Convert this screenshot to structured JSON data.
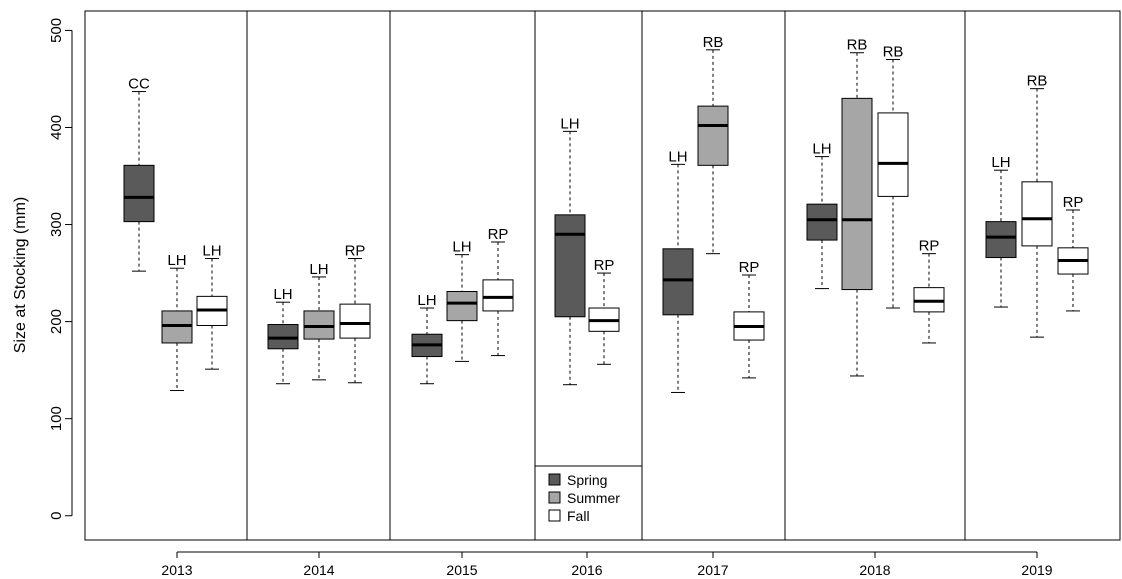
{
  "chart_data": {
    "type": "boxplot",
    "ylabel": "Size at Stocking (mm)",
    "ylim": [
      -25,
      520
    ],
    "y_ticks": [
      0,
      100,
      200,
      300,
      400,
      500
    ],
    "years": [
      "2013",
      "2014",
      "2015",
      "2016",
      "2017",
      "2018",
      "2019"
    ],
    "legend": {
      "placement": "inside-2016-panel-bottom",
      "entries": [
        {
          "name": "Spring",
          "color": "#5a5a5a"
        },
        {
          "name": "Summer",
          "color": "#a6a6a6"
        },
        {
          "name": "Fall",
          "color": "#ffffff"
        }
      ]
    },
    "boxes": [
      {
        "year": "2013",
        "season": "Spring",
        "min": 252,
        "q1": 303,
        "median": 328,
        "q3": 361,
        "max": 437,
        "label": "CC"
      },
      {
        "year": "2013",
        "season": "Summer",
        "min": 129,
        "q1": 178,
        "median": 196,
        "q3": 211,
        "max": 255,
        "label": "LH"
      },
      {
        "year": "2013",
        "season": "Fall",
        "min": 151,
        "q1": 196,
        "median": 212,
        "q3": 226,
        "max": 265,
        "label": "LH"
      },
      {
        "year": "2014",
        "season": "Spring",
        "min": 136,
        "q1": 172,
        "median": 183,
        "q3": 197,
        "max": 220,
        "label": "LH"
      },
      {
        "year": "2014",
        "season": "Summer",
        "min": 140,
        "q1": 182,
        "median": 195,
        "q3": 211,
        "max": 246,
        "label": "LH"
      },
      {
        "year": "2014",
        "season": "Fall",
        "min": 137,
        "q1": 183,
        "median": 198,
        "q3": 218,
        "max": 265,
        "label": "RP"
      },
      {
        "year": "2015",
        "season": "Spring",
        "min": 136,
        "q1": 164,
        "median": 176,
        "q3": 187,
        "max": 214,
        "label": "LH"
      },
      {
        "year": "2015",
        "season": "Summer",
        "min": 159,
        "q1": 201,
        "median": 219,
        "q3": 231,
        "max": 269,
        "label": "LH"
      },
      {
        "year": "2015",
        "season": "Fall",
        "min": 165,
        "q1": 211,
        "median": 225,
        "q3": 243,
        "max": 282,
        "label": "RP"
      },
      {
        "year": "2016",
        "season": "Spring",
        "min": 135,
        "q1": 205,
        "median": 290,
        "q3": 310,
        "max": 396,
        "label": "LH"
      },
      {
        "year": "2016",
        "season": "Fall",
        "min": 156,
        "q1": 190,
        "median": 201,
        "q3": 214,
        "max": 250,
        "label": "RP"
      },
      {
        "year": "2017",
        "season": "Spring",
        "min": 127,
        "q1": 207,
        "median": 243,
        "q3": 275,
        "max": 362,
        "label": "LH"
      },
      {
        "year": "2017",
        "season": "Summer",
        "min": 270,
        "q1": 361,
        "median": 402,
        "q3": 422,
        "max": 480,
        "label": "RB"
      },
      {
        "year": "2017",
        "season": "Fall",
        "min": 142,
        "q1": 181,
        "median": 195,
        "q3": 210,
        "max": 248,
        "label": "RP"
      },
      {
        "year": "2018",
        "season": "Spring",
        "min": 234,
        "q1": 284,
        "median": 305,
        "q3": 321,
        "max": 370,
        "label": "LH"
      },
      {
        "year": "2018",
        "season": "Summer",
        "min": 144,
        "q1": 233,
        "median": 305,
        "q3": 430,
        "max": 477,
        "label": "RB"
      },
      {
        "year": "2018",
        "season": "Fall",
        "min": 214,
        "q1": 329,
        "median": 363,
        "q3": 415,
        "max": 470,
        "label": "RB"
      },
      {
        "year": "2018",
        "season": "Fall",
        "min": 178,
        "q1": 210,
        "median": 221,
        "q3": 235,
        "max": 270,
        "label": "RP"
      },
      {
        "year": "2019",
        "season": "Spring",
        "min": 215,
        "q1": 266,
        "median": 287,
        "q3": 303,
        "max": 356,
        "label": "LH"
      },
      {
        "year": "2019",
        "season": "Fall",
        "min": 184,
        "q1": 278,
        "median": 306,
        "q3": 344,
        "max": 440,
        "label": "RB"
      },
      {
        "year": "2019",
        "season": "Fall",
        "min": 211,
        "q1": 249,
        "median": 263,
        "q3": 276,
        "max": 315,
        "label": "RP"
      }
    ]
  }
}
